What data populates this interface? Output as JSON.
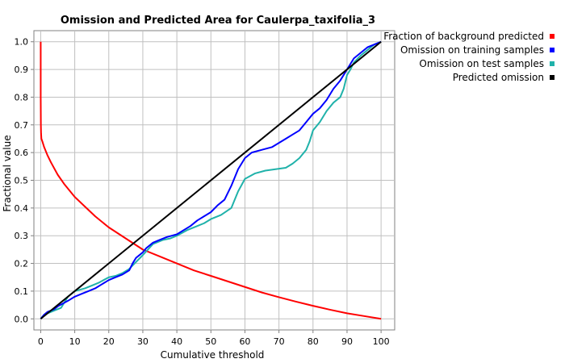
{
  "chart_data": {
    "type": "line",
    "title": "Omission and Predicted Area for Caulerpa_taxifolia_3",
    "xlabel": "Cumulative threshold",
    "ylabel": "Fractional value",
    "xlim": [
      -2,
      104
    ],
    "ylim": [
      -0.04,
      1.04
    ],
    "xticks": [
      0,
      10,
      20,
      30,
      40,
      50,
      60,
      70,
      80,
      90,
      100
    ],
    "yticks": [
      0.0,
      0.1,
      0.2,
      0.3,
      0.4,
      0.5,
      0.6,
      0.7,
      0.8,
      0.9,
      1.0
    ],
    "xtick_labels": [
      "0",
      "10",
      "20",
      "30",
      "40",
      "50",
      "60",
      "70",
      "80",
      "90",
      "100"
    ],
    "ytick_labels": [
      "0.0",
      "0.1",
      "0.2",
      "0.3",
      "0.4",
      "0.5",
      "0.6",
      "0.7",
      "0.8",
      "0.9",
      "1.0"
    ],
    "grid": true,
    "legend_position": "right-outside",
    "series": [
      {
        "name": "Fraction of background predicted",
        "color": "#ff0000",
        "x": [
          0,
          0,
          0.05,
          0.1,
          0.2,
          0.5,
          1,
          2,
          3,
          5,
          7,
          10,
          13,
          16,
          20,
          25,
          30,
          35,
          40,
          45,
          50,
          55,
          60,
          65,
          70,
          75,
          80,
          85,
          90,
          95,
          100
        ],
        "y": [
          1.0,
          0.8,
          0.7,
          0.67,
          0.65,
          0.64,
          0.62,
          0.59,
          0.565,
          0.52,
          0.485,
          0.44,
          0.405,
          0.37,
          0.33,
          0.29,
          0.25,
          0.225,
          0.2,
          0.175,
          0.155,
          0.135,
          0.115,
          0.095,
          0.078,
          0.062,
          0.047,
          0.033,
          0.02,
          0.01,
          0.0
        ]
      },
      {
        "name": "Omission on training samples",
        "color": "#0000ff",
        "x": [
          0,
          1,
          2,
          4,
          5,
          8,
          10,
          12,
          14,
          16,
          18,
          20,
          22,
          24,
          26,
          27,
          28,
          30,
          31,
          33,
          35,
          37,
          40,
          42,
          44,
          46,
          48,
          50,
          52,
          54,
          56,
          58,
          60,
          62,
          65,
          68,
          70,
          72,
          74,
          76,
          78,
          80,
          82,
          84,
          86,
          88,
          90,
          92,
          94,
          96,
          98,
          100
        ],
        "y": [
          0.0,
          0.015,
          0.025,
          0.035,
          0.045,
          0.065,
          0.08,
          0.09,
          0.1,
          0.11,
          0.125,
          0.14,
          0.15,
          0.16,
          0.175,
          0.2,
          0.22,
          0.24,
          0.255,
          0.275,
          0.285,
          0.295,
          0.305,
          0.32,
          0.335,
          0.355,
          0.37,
          0.385,
          0.41,
          0.43,
          0.48,
          0.54,
          0.58,
          0.6,
          0.61,
          0.62,
          0.635,
          0.65,
          0.665,
          0.68,
          0.71,
          0.74,
          0.76,
          0.79,
          0.83,
          0.86,
          0.9,
          0.94,
          0.96,
          0.98,
          0.99,
          1.0
        ]
      },
      {
        "name": "Omission on test samples",
        "color": "#20b2aa",
        "x": [
          0,
          1,
          2,
          4,
          6,
          7,
          8,
          10,
          13,
          15,
          17,
          20,
          22,
          24,
          26,
          28,
          30,
          33,
          36,
          38,
          40,
          43,
          46,
          48,
          50,
          53,
          56,
          58,
          60,
          63,
          66,
          69,
          72,
          74,
          76,
          78,
          79,
          80,
          82,
          84,
          86,
          88,
          89,
          90,
          91,
          92,
          94,
          96,
          98,
          100
        ],
        "y": [
          0.0,
          0.015,
          0.02,
          0.03,
          0.04,
          0.06,
          0.08,
          0.1,
          0.11,
          0.12,
          0.13,
          0.15,
          0.155,
          0.165,
          0.18,
          0.205,
          0.23,
          0.27,
          0.285,
          0.29,
          0.3,
          0.32,
          0.335,
          0.345,
          0.36,
          0.375,
          0.4,
          0.46,
          0.505,
          0.525,
          0.535,
          0.54,
          0.545,
          0.56,
          0.58,
          0.61,
          0.64,
          0.68,
          0.71,
          0.75,
          0.78,
          0.8,
          0.83,
          0.88,
          0.9,
          0.925,
          0.95,
          0.97,
          0.99,
          1.0
        ]
      },
      {
        "name": "Predicted omission",
        "color": "#000000",
        "x": [
          0,
          100
        ],
        "y": [
          0.0,
          1.0
        ]
      }
    ]
  }
}
